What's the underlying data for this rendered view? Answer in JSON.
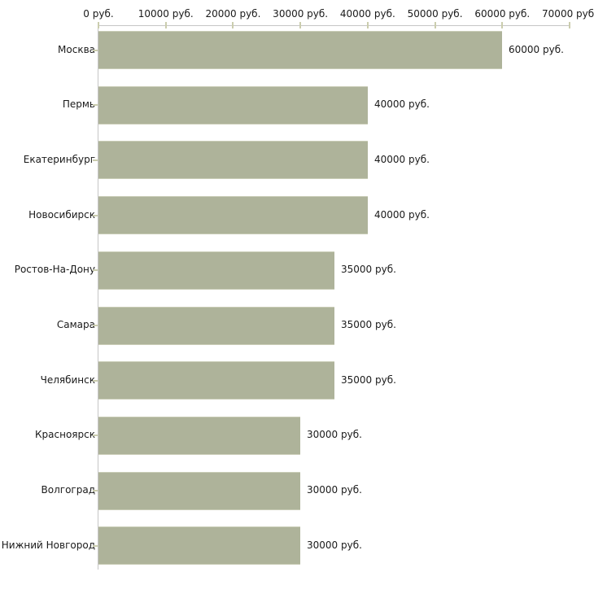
{
  "chart_data": {
    "type": "bar",
    "orientation": "horizontal",
    "title": "",
    "xlabel": "",
    "ylabel": "",
    "unit": "руб.",
    "categories": [
      "Москва",
      "Пермь",
      "Екатеринбург",
      "Новосибирск",
      "Ростов-На-Дону",
      "Самара",
      "Челябинск",
      "Красноярск",
      "Волгоград",
      "Нижний Новгород"
    ],
    "values": [
      60000,
      40000,
      40000,
      40000,
      35000,
      35000,
      35000,
      30000,
      30000,
      30000
    ],
    "value_labels": [
      "60000 руб.",
      "40000 руб.",
      "40000 руб.",
      "40000 руб.",
      "35000 руб.",
      "35000 руб.",
      "35000 руб.",
      "30000 руб.",
      "30000 руб.",
      "30000 руб."
    ],
    "x_ticks": [
      0,
      10000,
      20000,
      30000,
      40000,
      50000,
      60000,
      70000
    ],
    "x_tick_labels": [
      "0 руб.",
      "10000 руб.",
      "20000 руб.",
      "30000 руб.",
      "40000 руб.",
      "50000 руб.",
      "60000 руб.",
      "70000 руб."
    ],
    "xlim": [
      0,
      70000
    ],
    "grid": false,
    "legend": false,
    "axis_position": "top",
    "colors": {
      "bar_fill": "#aeb39a",
      "bar_border": "#c9ccb6",
      "axis_line": "#c6c6c6",
      "tick_mark": "#cbcdae",
      "text": "#1a1a1a",
      "background": "#ffffff"
    }
  }
}
